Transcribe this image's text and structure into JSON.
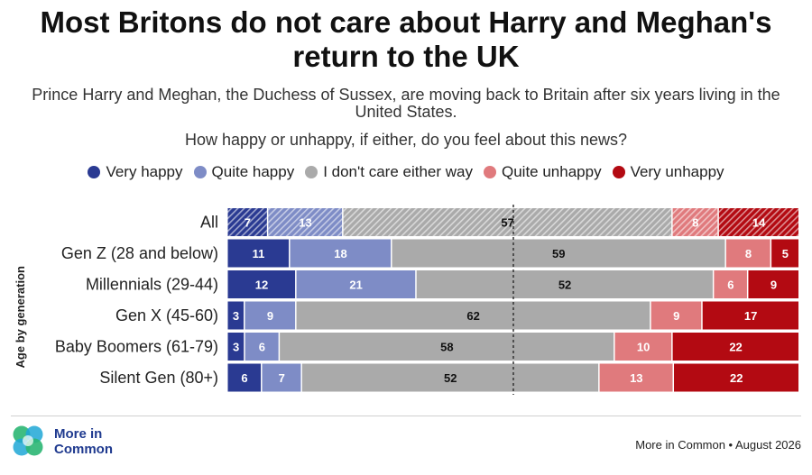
{
  "title": "Most Britons do not care about Harry and Meghan's return to the UK",
  "subtitle": "Prince Harry and Meghan, the Duchess of Sussex, are moving back to Britain after six years living in the United States.",
  "question": "How happy or unhappy, if either, do you feel about this news?",
  "chart_data": {
    "type": "bar",
    "orientation": "horizontal",
    "stacked": true,
    "categories": [
      "All",
      "Gen Z (28 and below)",
      "Millennials (29-44)",
      "Gen X (45-60)",
      "Baby Boomers (61-79)",
      "Silent Gen (80+)"
    ],
    "ylabel": "Age by generation",
    "xlim": [
      0,
      100
    ],
    "reference_line": 50,
    "hatched_categories": [
      "All"
    ],
    "series": [
      {
        "name": "Very happy",
        "color": "#2a3a92",
        "label_color": "#ffffff",
        "values": [
          7,
          11,
          12,
          3,
          3,
          6
        ]
      },
      {
        "name": "Quite happy",
        "color": "#7e8cc6",
        "label_color": "#ffffff",
        "values": [
          13,
          18,
          21,
          9,
          6,
          7
        ]
      },
      {
        "name": "I don't care either way",
        "color": "#aaaaaa",
        "label_color": "#111111",
        "values": [
          57,
          59,
          52,
          62,
          58,
          52
        ]
      },
      {
        "name": "Quite unhappy",
        "color": "#e07a7d",
        "label_color": "#ffffff",
        "values": [
          8,
          8,
          6,
          9,
          10,
          13
        ]
      },
      {
        "name": "Very unhappy",
        "color": "#b30a12",
        "label_color": "#ffffff",
        "values": [
          14,
          5,
          9,
          17,
          22,
          22
        ]
      }
    ]
  },
  "footer": {
    "logo_line1": "More in",
    "logo_line2": "Common",
    "source": "More in Common • August 2026"
  }
}
